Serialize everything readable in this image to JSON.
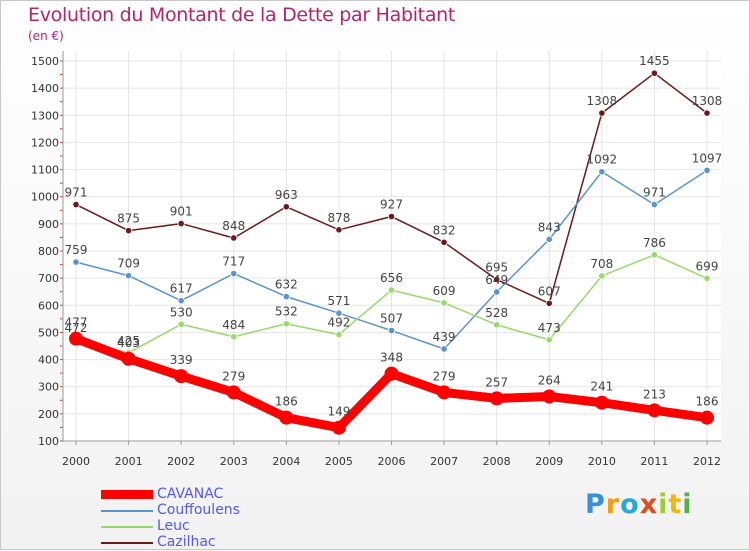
{
  "header": {
    "title": "Evolution du Montant de la Dette par Habitant",
    "subtitle": "(en €)"
  },
  "chart_data": {
    "type": "line",
    "title": "Evolution du Montant de la Dette par Habitant",
    "subtitle": "(en €)",
    "x": [
      "2000",
      "2001",
      "2002",
      "2003",
      "2004",
      "2005",
      "2006",
      "2007",
      "2008",
      "2009",
      "2010",
      "2011",
      "2012"
    ],
    "ylim": [
      100,
      1500
    ],
    "yticks": [
      "100",
      "200",
      "300",
      "400",
      "500",
      "600",
      "700",
      "800",
      "900",
      "1000",
      "1100",
      "1200",
      "1300",
      "1400",
      "1500"
    ],
    "grid": true,
    "legend_position": "bottom-left",
    "series": [
      {
        "name": "Cazilhac",
        "color": "#6b1a1a",
        "values": [
          971,
          875,
          901,
          848,
          963,
          878,
          927,
          832,
          695,
          607,
          1308,
          1455,
          1308
        ]
      },
      {
        "name": "Couffoulens",
        "color": "#5b94cc",
        "values": [
          759,
          709,
          617,
          717,
          632,
          571,
          507,
          439,
          649,
          843,
          1092,
          971,
          1097
        ]
      },
      {
        "name": "Leuc",
        "color": "#99d96b",
        "values": [
          472,
          425,
          530,
          484,
          532,
          492,
          656,
          609,
          528,
          473,
          708,
          786,
          699
        ]
      },
      {
        "name": "CAVANAC",
        "color": "#ff0000",
        "values": [
          477,
          403,
          339,
          279,
          186,
          149,
          348,
          279,
          257,
          264,
          241,
          213,
          186
        ]
      }
    ]
  },
  "legend": {
    "items": [
      {
        "label": "CAVANAC",
        "color": "#ff0000"
      },
      {
        "label": "Couffoulens",
        "color": "#5b94cc"
      },
      {
        "label": "Leuc",
        "color": "#99d96b"
      },
      {
        "label": "Cazilhac",
        "color": "#6b1a1a"
      }
    ]
  },
  "logo": {
    "letters": [
      "P",
      "r",
      "o",
      "x",
      "i",
      "t",
      "i"
    ],
    "colors": [
      "#3a8fd9",
      "#f39c12",
      "#2aa6d8",
      "#e04d1c",
      "#9ccc3a",
      "#f2b705",
      "#55b04a"
    ]
  }
}
